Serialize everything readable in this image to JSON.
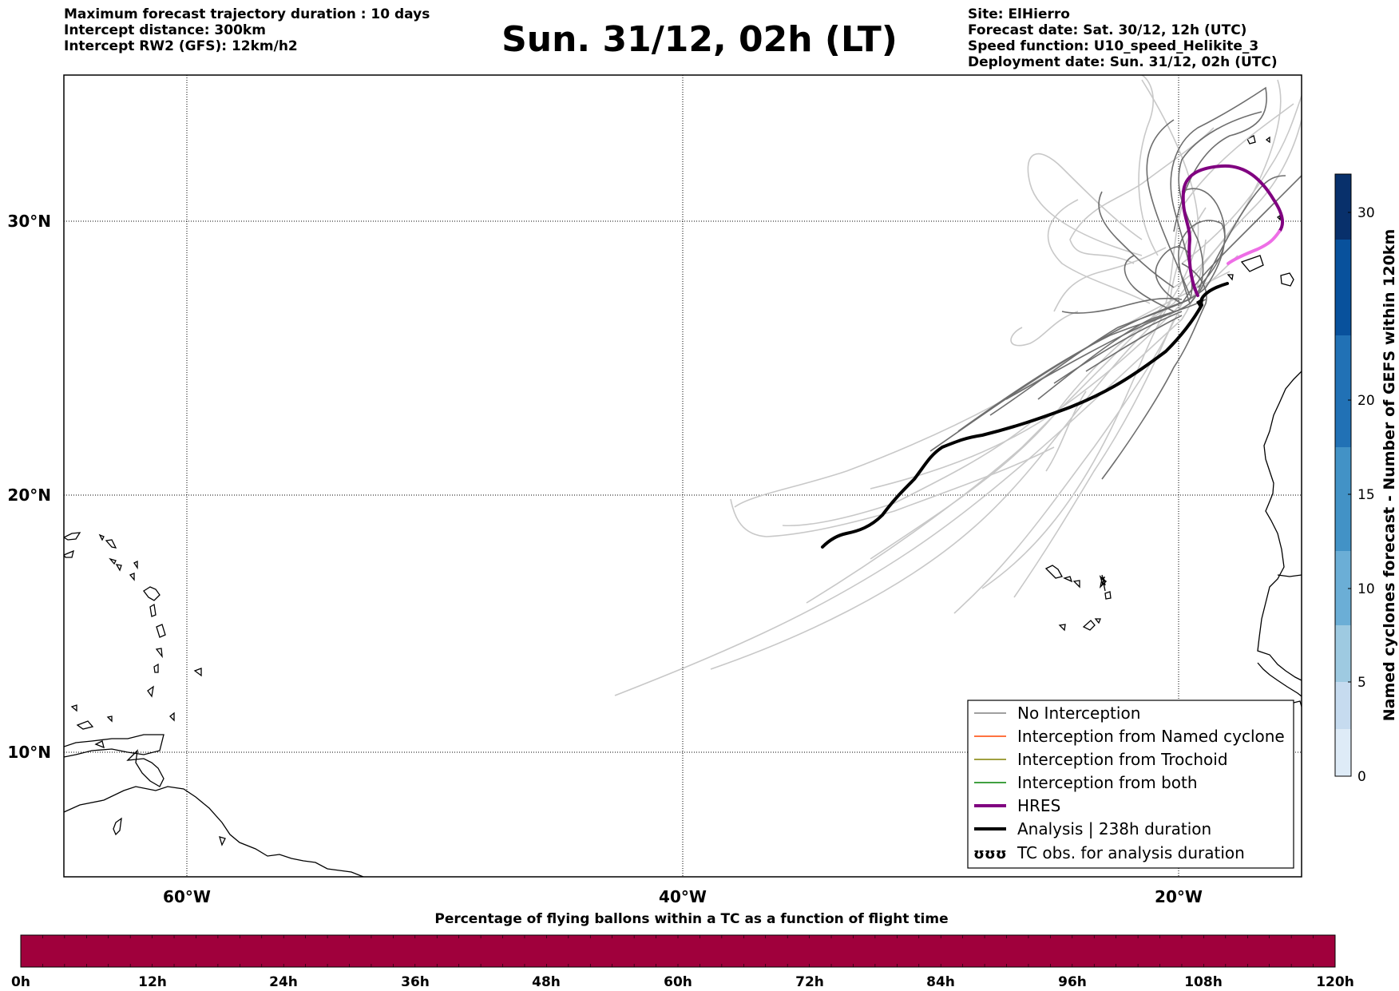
{
  "header": {
    "left": [
      "Maximum forecast trajectory duration : 10 days",
      "Intercept distance: 300km",
      "Intercept RW2 (GFS):  12km/h2"
    ],
    "title": "Sun. 31/12, 02h (LT)",
    "right": [
      "Site: ElHierro",
      "Forecast date: Sat. 30/12, 12h (UTC)",
      "Speed function: U10_speed_Helikite_3",
      "Deployment date: Sun. 31/12, 02h (UTC)"
    ]
  },
  "map": {
    "lon_labels": [
      "60°W",
      "40°W",
      "20°W"
    ],
    "lat_labels": [
      "30°N",
      "20°N",
      "10°N"
    ]
  },
  "legend": {
    "items": [
      {
        "label": "No Interception",
        "color": "#808080"
      },
      {
        "label": "Interception from Named cyclone",
        "color": "#ff4500"
      },
      {
        "label": "Interception from Trochoid",
        "color": "#808000"
      },
      {
        "label": "Interception from both",
        "color": "#008000"
      },
      {
        "label": "HRES",
        "color": "#800080"
      },
      {
        "label": "Analysis | 238h duration",
        "color": "#000000"
      },
      {
        "label": "TC obs. for analysis duration",
        "color": "#000000",
        "symbol": "ʊʊʊ"
      }
    ]
  },
  "colorbar_right": {
    "label": "Named cyclones forecast - Number of GEFS within 120km",
    "ticks": [
      "0",
      "5",
      "10",
      "15",
      "20",
      "30"
    ],
    "colors": [
      "#deebf7",
      "#c6dbef",
      "#9ecae1",
      "#6baed6",
      "#4292c6",
      "#2171b5",
      "#08519c",
      "#08306b"
    ]
  },
  "colorbar_bottom": {
    "title": "Percentage of flying ballons within a TC as a function of flight time",
    "ticks": [
      "0h",
      "12h",
      "24h",
      "36h",
      "48h",
      "60h",
      "72h",
      "84h",
      "96h",
      "108h",
      "120h"
    ],
    "color": "#a0003c"
  }
}
